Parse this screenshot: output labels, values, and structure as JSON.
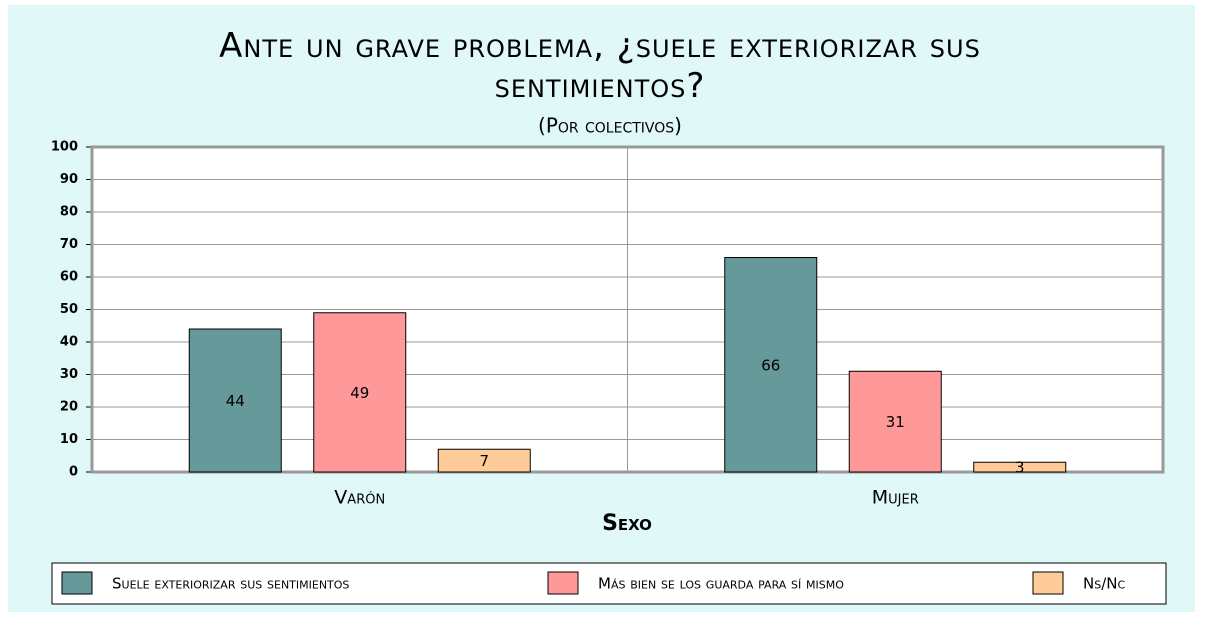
{
  "chart_data": {
    "type": "bar",
    "title": "Ante un grave problema, ¿suele exteriorizar sus sentimientos?",
    "subtitle": "(Por colectivos)",
    "x_label": "Sexo",
    "categories": [
      "Varón",
      "Mujer"
    ],
    "series": [
      {
        "name": "Suele exteriorizar sus sentimientos",
        "color": "#669999",
        "values": [
          44,
          66
        ]
      },
      {
        "name": "Más bien se los guarda para sí mismo",
        "color": "#ff9999",
        "values": [
          49,
          31
        ]
      },
      {
        "name": "Ns/Nc",
        "color": "#ffcc99",
        "values": [
          7,
          3
        ]
      }
    ],
    "ylim": [
      0,
      100
    ],
    "yticks": [
      0,
      10,
      20,
      30,
      40,
      50,
      60,
      70,
      80,
      90,
      100
    ],
    "grid": true,
    "legend": "bottom"
  }
}
